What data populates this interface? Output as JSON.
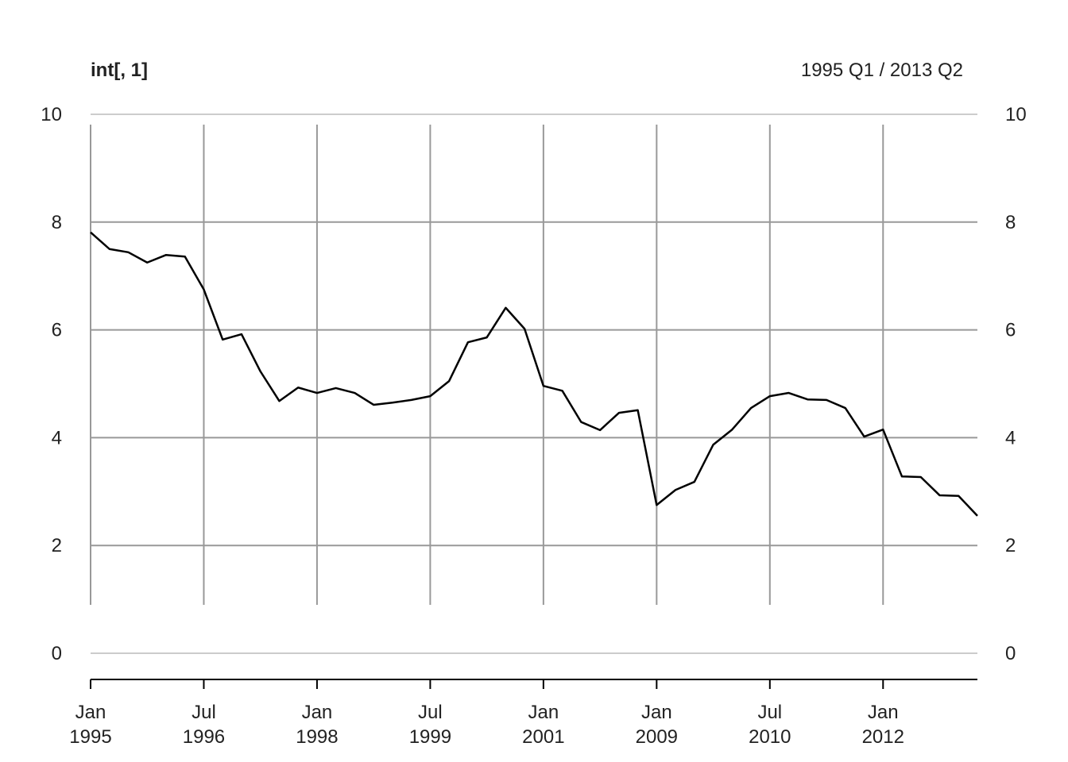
{
  "chart_data": {
    "type": "line",
    "title": "int[, 1]",
    "subtitle": "1995 Q1 / 2013 Q2",
    "categories": [
      null,
      null,
      null,
      null,
      null,
      null,
      null,
      null,
      null,
      null,
      null,
      null,
      null,
      null,
      null,
      null,
      null,
      null,
      null,
      null,
      null,
      null,
      null,
      null,
      null,
      null,
      null,
      null,
      null,
      null,
      null,
      null,
      null,
      null,
      null,
      null,
      null,
      null,
      null,
      null,
      null,
      null,
      null,
      null,
      null,
      null,
      null,
      null
    ],
    "values": [
      7.81,
      7.5,
      7.44,
      7.25,
      7.39,
      7.36,
      6.75,
      5.82,
      5.92,
      5.23,
      4.68,
      4.93,
      4.83,
      4.92,
      4.83,
      4.61,
      4.65,
      4.7,
      4.77,
      5.05,
      5.77,
      5.86,
      6.41,
      6.02,
      4.96,
      4.87,
      4.29,
      4.14,
      4.46,
      4.51,
      2.75,
      3.03,
      3.18,
      3.87,
      4.15,
      4.55,
      4.77,
      4.83,
      4.71,
      4.7,
      4.55,
      4.02,
      4.15,
      3.28,
      3.27,
      2.93,
      2.92,
      2.55
    ],
    "color": "#000000",
    "xlim": [
      0,
      47
    ],
    "xticks": [
      {
        "value": 0,
        "label": "Jan 1995"
      },
      {
        "value": 6,
        "label": "Jul 1996"
      },
      {
        "value": 12,
        "label": "Jan 1998"
      },
      {
        "value": 18,
        "label": "Jul 1999"
      },
      {
        "value": 24,
        "label": "Jan 2001"
      },
      {
        "value": 30,
        "label": "Jan 2009"
      },
      {
        "value": 36,
        "label": "Jul 2010"
      },
      {
        "value": 42,
        "label": "Jan 2012"
      }
    ],
    "ylim": [
      0,
      10
    ],
    "yticks": [
      0,
      2,
      4,
      6,
      8,
      10
    ],
    "grid": true
  }
}
